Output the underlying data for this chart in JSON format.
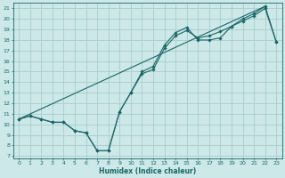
{
  "title": "",
  "xlabel": "Humidex (Indice chaleur)",
  "bg_color": "#cce8e8",
  "grid_color": "#aacccc",
  "line_color": "#1a6666",
  "xlim": [
    -0.5,
    23.5
  ],
  "ylim": [
    6.8,
    21.5
  ],
  "xticks": [
    0,
    1,
    2,
    3,
    4,
    5,
    6,
    7,
    8,
    9,
    10,
    11,
    12,
    13,
    14,
    15,
    16,
    17,
    18,
    19,
    20,
    21,
    22,
    23
  ],
  "yticks": [
    7,
    8,
    9,
    10,
    11,
    12,
    13,
    14,
    15,
    16,
    17,
    18,
    19,
    20,
    21
  ],
  "line1_x": [
    0,
    1,
    2,
    3,
    4,
    5,
    6,
    7,
    8,
    9,
    10,
    11,
    12,
    13,
    14,
    15,
    16,
    17,
    18,
    19,
    20,
    21,
    22,
    23
  ],
  "line1_y": [
    10.5,
    10.8,
    10.5,
    10.2,
    10.2,
    9.4,
    9.2,
    7.5,
    7.5,
    11.2,
    13.0,
    15.0,
    15.5,
    17.5,
    18.7,
    19.2,
    18.0,
    18.0,
    18.2,
    19.3,
    20.0,
    20.5,
    21.2,
    17.8
  ],
  "line2_x": [
    0,
    1,
    2,
    3,
    4,
    5,
    6,
    7,
    8,
    9,
    10,
    11,
    12,
    13,
    14,
    15,
    16,
    17,
    18,
    19,
    20,
    21,
    22,
    23
  ],
  "line2_y": [
    10.5,
    10.8,
    10.5,
    10.2,
    10.2,
    9.4,
    9.2,
    7.5,
    7.5,
    11.2,
    13.0,
    14.8,
    15.2,
    17.2,
    18.4,
    18.9,
    18.2,
    18.4,
    18.8,
    19.3,
    19.8,
    20.3,
    21.0,
    17.8
  ],
  "line3_x": [
    0,
    22
  ],
  "line3_y": [
    10.5,
    21.2
  ],
  "markersize": 1.8
}
